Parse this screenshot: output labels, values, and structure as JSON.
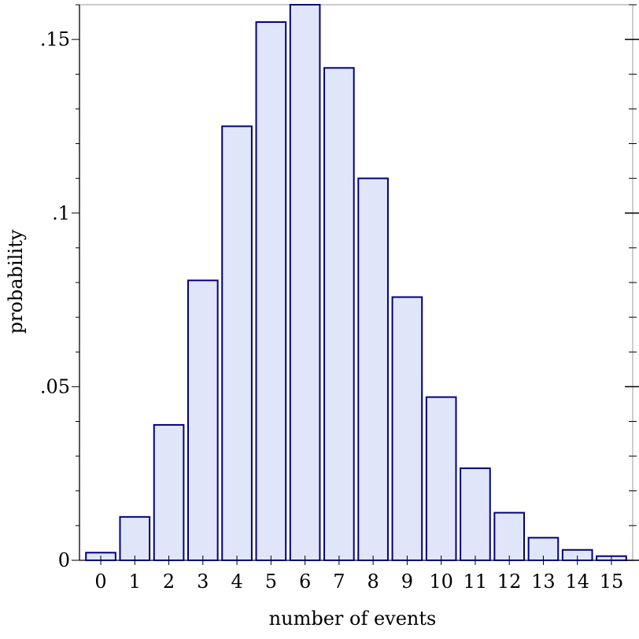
{
  "chart_data": {
    "type": "bar",
    "categories": [
      "0",
      "1",
      "2",
      "3",
      "4",
      "5",
      "6",
      "7",
      "8",
      "9",
      "10",
      "11",
      "12",
      "13",
      "14",
      "15"
    ],
    "values": [
      0.0022,
      0.0125,
      0.039,
      0.0806,
      0.125,
      0.155,
      0.16,
      0.1418,
      0.11,
      0.0758,
      0.047,
      0.0265,
      0.0137,
      0.0065,
      0.003,
      0.0012
    ],
    "title": "",
    "xlabel": "number of events",
    "ylabel": "probability",
    "ylim": [
      0,
      0.16
    ],
    "yticks": [
      {
        "value": 0,
        "label": "0"
      },
      {
        "value": 0.05,
        "label": ".05"
      },
      {
        "value": 0.1,
        "label": ".1"
      },
      {
        "value": 0.15,
        "label": ".15"
      }
    ],
    "grid": false,
    "legend": "none",
    "colors": {
      "bar_fill": "#e0e6fa",
      "bar_stroke": "#00007f",
      "axis": "#000000",
      "frame": "#999999"
    }
  }
}
